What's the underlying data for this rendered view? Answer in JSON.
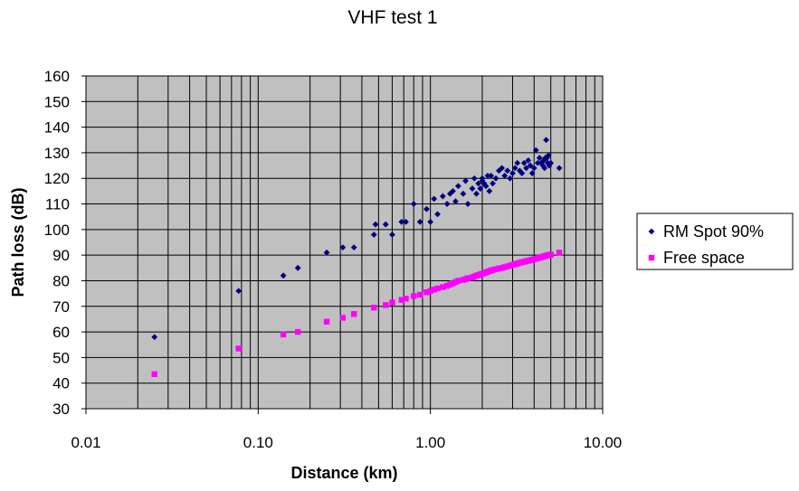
{
  "chart_data": {
    "type": "scatter",
    "title": "VHF test 1",
    "xlabel": "Distance (km)",
    "ylabel": "Path loss (dB)",
    "x_scale": "log",
    "xlim": [
      0.01,
      10
    ],
    "ylim": [
      30,
      160
    ],
    "x_ticks": [
      0.01,
      0.1,
      1,
      10
    ],
    "x_tick_labels": [
      "0.01",
      "0.10",
      "1.00",
      "10.00"
    ],
    "y_ticks": [
      30,
      40,
      50,
      60,
      70,
      80,
      90,
      100,
      110,
      120,
      130,
      140,
      150,
      160
    ],
    "y_tick_labels": [
      "30",
      "40",
      "50",
      "60",
      "70",
      "80",
      "90",
      "100",
      "110",
      "120",
      "130",
      "140",
      "150",
      "160"
    ],
    "grid": true,
    "plot_background": "#c0c0c0",
    "legend_position": "right",
    "series": [
      {
        "name": "RM Spot 90%",
        "marker": "diamond",
        "color": "#000080",
        "x": [
          0.025,
          0.077,
          0.14,
          0.17,
          0.25,
          0.31,
          0.36,
          0.47,
          0.48,
          0.55,
          0.6,
          0.68,
          0.72,
          0.8,
          0.87,
          0.95,
          1.0,
          1.05,
          1.1,
          1.18,
          1.25,
          1.3,
          1.35,
          1.4,
          1.45,
          1.55,
          1.6,
          1.65,
          1.75,
          1.8,
          1.85,
          1.9,
          1.95,
          2.0,
          2.0,
          2.05,
          2.1,
          2.15,
          2.2,
          2.25,
          2.3,
          2.4,
          2.5,
          2.6,
          2.7,
          2.8,
          2.9,
          3.0,
          3.1,
          3.2,
          3.3,
          3.4,
          3.5,
          3.6,
          3.7,
          3.8,
          3.9,
          4.0,
          4.1,
          4.2,
          4.3,
          4.4,
          4.5,
          4.55,
          4.6,
          4.65,
          4.7,
          4.75,
          4.8,
          4.85,
          4.9,
          5.0,
          5.6
        ],
        "y": [
          58,
          76,
          82,
          85,
          91,
          93,
          93,
          98,
          102,
          102,
          98,
          103,
          103,
          110,
          103,
          108,
          103,
          112,
          106,
          113,
          110,
          114,
          115,
          111,
          117,
          114,
          119,
          110,
          116,
          120,
          114,
          118,
          116,
          119,
          120,
          118,
          117,
          121,
          115,
          121,
          118,
          120,
          123,
          124,
          121,
          123,
          120,
          122,
          124,
          126,
          123,
          122,
          126,
          124,
          127,
          125,
          122,
          124,
          131,
          126,
          128,
          126,
          125,
          127,
          124,
          128,
          135,
          128,
          126,
          129,
          125,
          126,
          124
        ]
      },
      {
        "name": "Free space",
        "marker": "square",
        "color": "#ff00ff",
        "x": [
          0.025,
          0.077,
          0.14,
          0.17,
          0.25,
          0.31,
          0.36,
          0.47,
          0.55,
          0.6,
          0.68,
          0.72,
          0.8,
          0.87,
          0.95,
          1.0,
          1.05,
          1.1,
          1.18,
          1.25,
          1.3,
          1.35,
          1.4,
          1.45,
          1.55,
          1.6,
          1.65,
          1.75,
          1.8,
          1.85,
          1.9,
          1.95,
          2.0,
          2.05,
          2.1,
          2.15,
          2.2,
          2.25,
          2.3,
          2.4,
          2.5,
          2.6,
          2.7,
          2.8,
          2.9,
          3.0,
          3.1,
          3.2,
          3.3,
          3.4,
          3.5,
          3.6,
          3.7,
          3.8,
          3.9,
          4.0,
          4.1,
          4.2,
          4.3,
          4.4,
          4.5,
          4.6,
          4.7,
          4.8,
          4.9,
          5.0,
          5.6
        ],
        "y": [
          43.5,
          53.5,
          59,
          60,
          64,
          65.5,
          67,
          69.5,
          70.5,
          71.5,
          72.5,
          73,
          74,
          74.5,
          75.5,
          76,
          76.5,
          77,
          77.5,
          78,
          78.5,
          79,
          79.5,
          80,
          80.3,
          80.6,
          81,
          81.3,
          81.6,
          82,
          82.2,
          82.5,
          82.7,
          83,
          83.2,
          83.5,
          83.7,
          84,
          84.2,
          84.5,
          84.8,
          85,
          85.3,
          85.6,
          85.9,
          86.2,
          86.5,
          86.7,
          87,
          87.2,
          87.4,
          87.6,
          87.8,
          88,
          88.2,
          88.4,
          88.6,
          88.8,
          89,
          89.2,
          89.4,
          89.6,
          89.8,
          90,
          90.1,
          90.2,
          91
        ]
      }
    ]
  }
}
